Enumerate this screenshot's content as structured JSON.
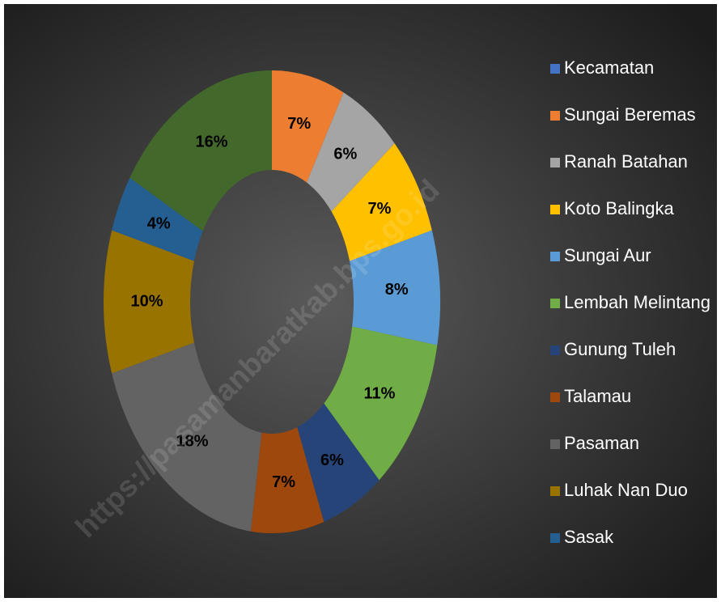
{
  "chart_data": {
    "type": "donut",
    "categories": [
      "Kecamatan",
      "Sungai Beremas",
      "Ranah Batahan",
      "Koto Balingka",
      "Sungai Aur",
      "Lembah Melintang",
      "Gunung Tuleh",
      "Talamau",
      "Pasaman",
      "Luhak Nan Duo",
      "Sasak",
      null
    ],
    "values": [
      0,
      7,
      6,
      7,
      8,
      11,
      6,
      7,
      18,
      10,
      4,
      16
    ],
    "value_labels": [
      null,
      "7%",
      "6%",
      "7%",
      "8%",
      "11%",
      "6%",
      "7%",
      "18%",
      "10%",
      "4%",
      "16%"
    ],
    "colors": [
      "#4472c4",
      "#ed7d31",
      "#a5a5a5",
      "#ffc000",
      "#5b9bd5",
      "#70ad47",
      "#264478",
      "#9e480e",
      "#636363",
      "#997300",
      "#255e91",
      "#43682b"
    ],
    "legend": "right",
    "watermark": "https://pasamanbaratkab.bps.go.id"
  }
}
